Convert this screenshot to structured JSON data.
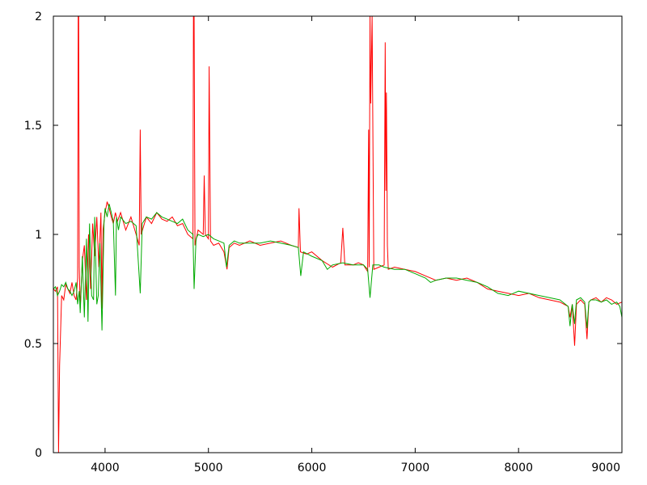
{
  "chart_data": {
    "type": "line",
    "title": "",
    "xlabel": "",
    "ylabel": "",
    "xlim": [
      3500,
      9000
    ],
    "ylim": [
      0,
      2
    ],
    "grid": false,
    "legend": "none",
    "x_ticks": [
      4000,
      5000,
      6000,
      7000,
      8000,
      9000
    ],
    "x_tick_labels": [
      "4000",
      "5000",
      "6000",
      "7000",
      "8000",
      "9000"
    ],
    "y_ticks": [
      0,
      0.5,
      1,
      1.5,
      2
    ],
    "y_tick_labels": [
      "0",
      "0.5",
      "1",
      "1.5",
      "2"
    ],
    "series": [
      {
        "color": "#ff0000",
        "x": [
          3500,
          3520,
          3540,
          3550,
          3560,
          3580,
          3600,
          3620,
          3640,
          3660,
          3680,
          3700,
          3720,
          3735,
          3740,
          3745,
          3750,
          3760,
          3780,
          3800,
          3820,
          3840,
          3860,
          3880,
          3900,
          3920,
          3940,
          3960,
          3970,
          3980,
          4000,
          4020,
          4040,
          4060,
          4080,
          4100,
          4120,
          4150,
          4200,
          4250,
          4300,
          4330,
          4340,
          4350,
          4400,
          4450,
          4500,
          4550,
          4600,
          4650,
          4700,
          4750,
          4800,
          4850,
          4855,
          4861,
          4870,
          4900,
          4950,
          4959,
          4970,
          5000,
          5007,
          5020,
          5050,
          5100,
          5150,
          5180,
          5200,
          5250,
          5300,
          5400,
          5500,
          5600,
          5700,
          5800,
          5870,
          5876,
          5890,
          5950,
          6000,
          6100,
          6200,
          6280,
          6300,
          6320,
          6400,
          6450,
          6500,
          6540,
          6550,
          6555,
          6563,
          6570,
          6583,
          6600,
          6650,
          6700,
          6710,
          6716,
          6722,
          6731,
          6740,
          6800,
          6900,
          7000,
          7100,
          7200,
          7300,
          7400,
          7500,
          7600,
          7700,
          7800,
          7900,
          8000,
          8100,
          8200,
          8300,
          8400,
          8480,
          8498,
          8520,
          8542,
          8560,
          8600,
          8640,
          8662,
          8680,
          8700,
          8750,
          8800,
          8850,
          8900,
          8950,
          9000
        ],
        "y": [
          0.75,
          0.74,
          0.76,
          0.0,
          0.4,
          0.72,
          0.7,
          0.77,
          0.75,
          0.73,
          0.78,
          0.72,
          0.7,
          0.8,
          2.0,
          2.0,
          0.85,
          0.66,
          0.88,
          0.95,
          0.7,
          1.0,
          0.75,
          1.05,
          0.9,
          1.08,
          0.85,
          1.1,
          0.66,
          1.02,
          1.1,
          1.15,
          1.12,
          1.08,
          1.05,
          1.1,
          1.06,
          1.1,
          1.02,
          1.08,
          1.0,
          0.95,
          1.48,
          1.0,
          1.08,
          1.05,
          1.1,
          1.07,
          1.06,
          1.08,
          1.04,
          1.05,
          1.0,
          0.98,
          2.0,
          2.0,
          0.95,
          1.02,
          1.0,
          1.27,
          1.0,
          0.98,
          1.77,
          0.97,
          0.95,
          0.96,
          0.92,
          0.84,
          0.94,
          0.96,
          0.95,
          0.97,
          0.95,
          0.96,
          0.97,
          0.95,
          0.94,
          1.12,
          0.92,
          0.91,
          0.92,
          0.88,
          0.85,
          0.87,
          1.03,
          0.86,
          0.86,
          0.87,
          0.86,
          0.83,
          1.48,
          0.85,
          2.0,
          1.6,
          2.0,
          0.84,
          0.85,
          0.86,
          1.88,
          1.2,
          1.65,
          0.95,
          0.84,
          0.85,
          0.84,
          0.83,
          0.81,
          0.79,
          0.8,
          0.79,
          0.8,
          0.78,
          0.75,
          0.74,
          0.73,
          0.72,
          0.73,
          0.71,
          0.7,
          0.69,
          0.67,
          0.62,
          0.68,
          0.49,
          0.68,
          0.7,
          0.68,
          0.52,
          0.69,
          0.7,
          0.71,
          0.69,
          0.71,
          0.7,
          0.68,
          0.69
        ]
      },
      {
        "color": "#00aa00",
        "x": [
          3500,
          3520,
          3540,
          3560,
          3580,
          3600,
          3620,
          3640,
          3660,
          3680,
          3700,
          3720,
          3735,
          3750,
          3760,
          3780,
          3800,
          3820,
          3835,
          3850,
          3870,
          3889,
          3900,
          3920,
          3934,
          3950,
          3970,
          3990,
          4000,
          4020,
          4040,
          4060,
          4080,
          4101,
          4110,
          4130,
          4150,
          4200,
          4250,
          4300,
          4340,
          4360,
          4400,
          4450,
          4500,
          4550,
          4600,
          4650,
          4700,
          4750,
          4800,
          4850,
          4861,
          4880,
          4900,
          4950,
          5000,
          5050,
          5100,
          5150,
          5175,
          5200,
          5250,
          5300,
          5400,
          5500,
          5600,
          5700,
          5800,
          5870,
          5893,
          5920,
          6000,
          6100,
          6150,
          6200,
          6300,
          6400,
          6500,
          6540,
          6563,
          6590,
          6650,
          6700,
          6800,
          6900,
          7000,
          7100,
          7150,
          7200,
          7300,
          7400,
          7500,
          7600,
          7700,
          7800,
          7900,
          8000,
          8100,
          8200,
          8300,
          8400,
          8480,
          8498,
          8520,
          8542,
          8560,
          8600,
          8640,
          8662,
          8680,
          8700,
          8750,
          8800,
          8850,
          8900,
          8950,
          8980,
          9000
        ],
        "y": [
          0.75,
          0.76,
          0.72,
          0.74,
          0.77,
          0.76,
          0.78,
          0.75,
          0.74,
          0.72,
          0.74,
          0.78,
          0.68,
          0.74,
          0.64,
          0.9,
          0.62,
          0.98,
          0.6,
          1.05,
          0.72,
          0.7,
          1.08,
          0.68,
          0.72,
          0.96,
          0.56,
          1.05,
          1.12,
          1.08,
          1.14,
          1.1,
          1.06,
          0.72,
          1.08,
          1.02,
          1.08,
          1.05,
          1.06,
          1.04,
          0.73,
          1.05,
          1.08,
          1.07,
          1.1,
          1.08,
          1.07,
          1.06,
          1.05,
          1.07,
          1.02,
          1.0,
          0.75,
          0.98,
          1.0,
          0.99,
          1.0,
          0.98,
          0.97,
          0.96,
          0.85,
          0.95,
          0.97,
          0.96,
          0.96,
          0.96,
          0.97,
          0.96,
          0.95,
          0.94,
          0.81,
          0.92,
          0.9,
          0.88,
          0.84,
          0.86,
          0.87,
          0.86,
          0.86,
          0.84,
          0.71,
          0.86,
          0.86,
          0.85,
          0.84,
          0.84,
          0.82,
          0.8,
          0.78,
          0.79,
          0.8,
          0.8,
          0.79,
          0.78,
          0.76,
          0.73,
          0.72,
          0.74,
          0.73,
          0.72,
          0.71,
          0.7,
          0.67,
          0.58,
          0.68,
          0.59,
          0.7,
          0.71,
          0.69,
          0.57,
          0.69,
          0.7,
          0.7,
          0.69,
          0.7,
          0.68,
          0.69,
          0.67,
          0.62
        ]
      }
    ]
  }
}
